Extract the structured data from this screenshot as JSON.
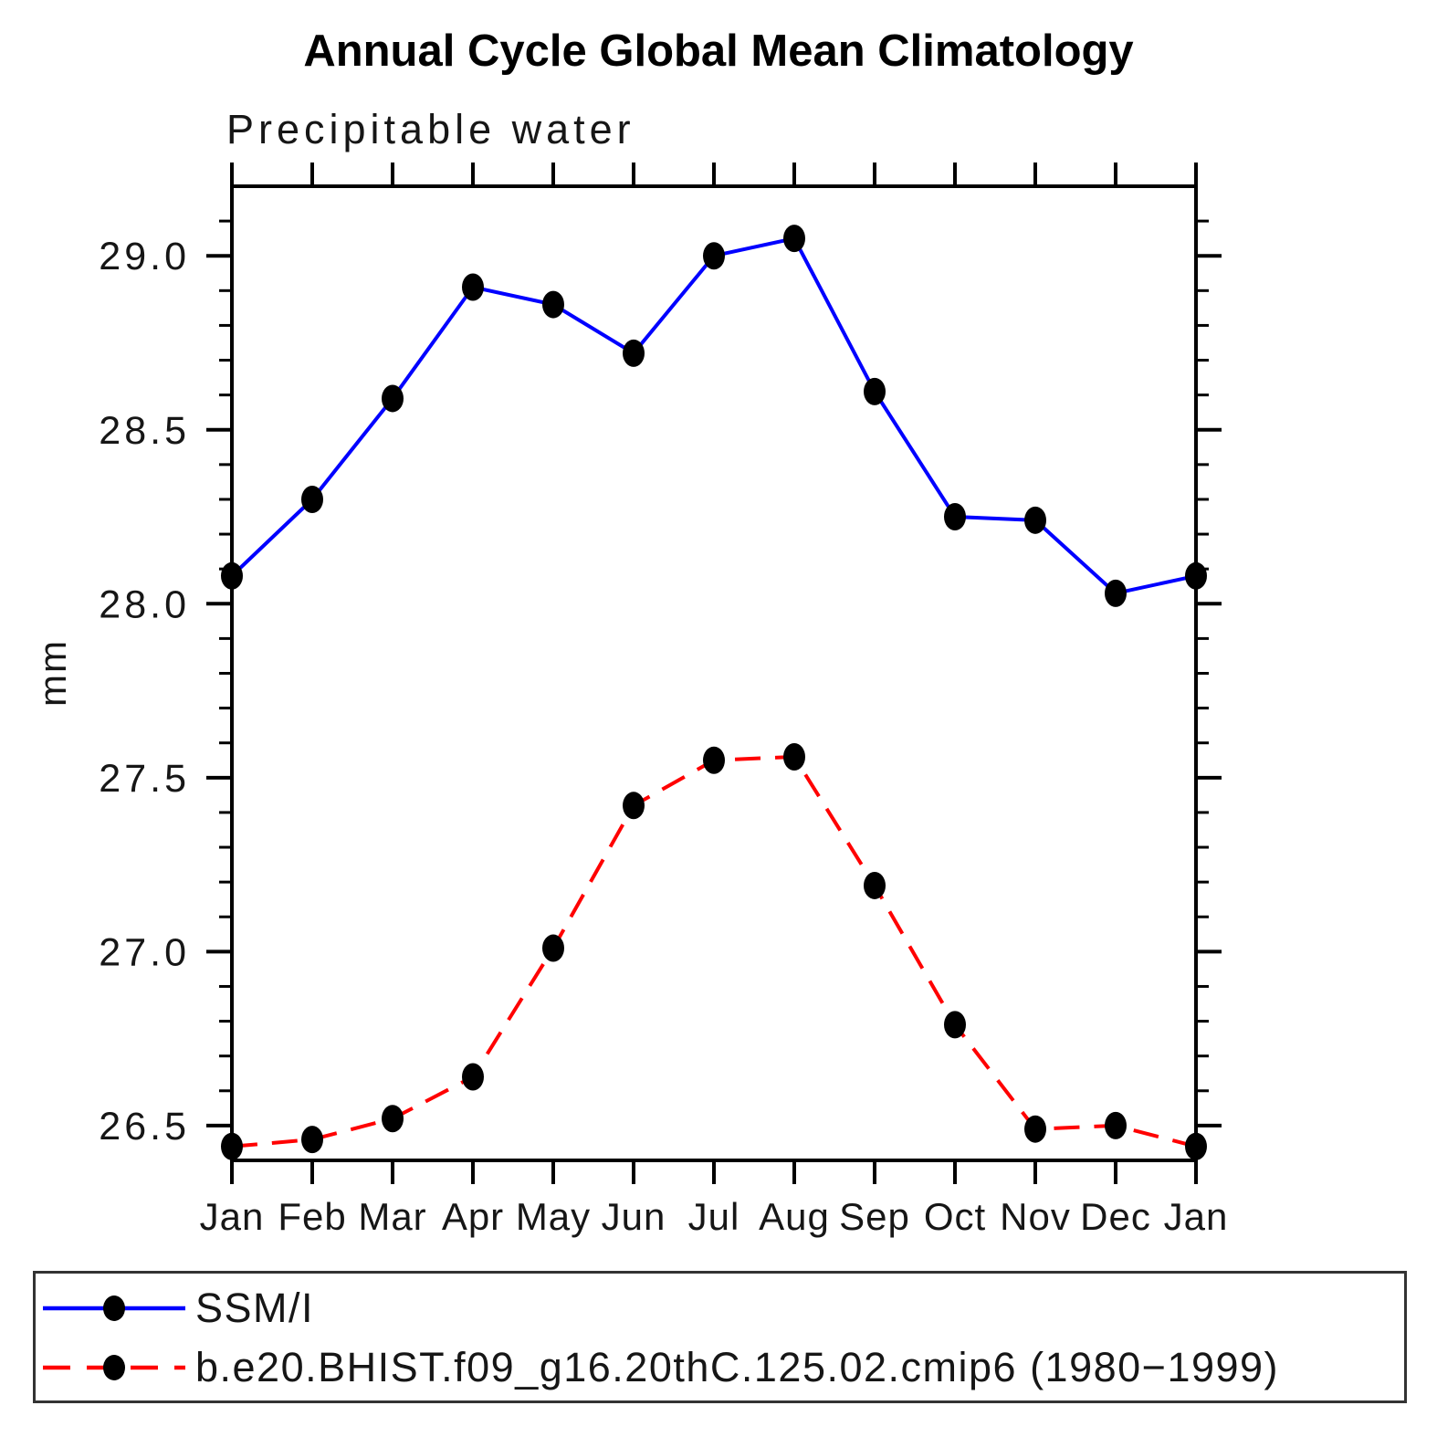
{
  "chart_data": {
    "type": "line",
    "title": "Annual Cycle Global Mean Climatology",
    "subtitle": "Precipitable water",
    "ylabel": "mm",
    "xlabel": "",
    "categories": [
      "Jan",
      "Feb",
      "Mar",
      "Apr",
      "May",
      "Jun",
      "Jul",
      "Aug",
      "Sep",
      "Oct",
      "Nov",
      "Dec",
      "Jan"
    ],
    "ylim": [
      26.4,
      29.2
    ],
    "yticks_major": [
      26.5,
      27.0,
      27.5,
      28.0,
      28.5,
      29.0
    ],
    "ytick_minor_step": 0.1,
    "grid": false,
    "legend_position": "bottom-left-box",
    "marker_color": "#000000",
    "axis_color": "#000000",
    "series": [
      {
        "name": "SSM/I",
        "color": "#0000ff",
        "line_style": "solid",
        "marker": "circle",
        "values": [
          28.08,
          28.3,
          28.59,
          28.91,
          28.86,
          28.72,
          29.0,
          29.05,
          28.61,
          28.25,
          28.24,
          28.03,
          28.08
        ]
      },
      {
        "name": "b.e20.BHIST.f09_g16.20thC.125.02.cmip6 (1980−1999)",
        "color": "#ff0000",
        "line_style": "dashed",
        "marker": "circle",
        "values": [
          26.44,
          26.46,
          26.52,
          26.64,
          27.01,
          27.42,
          27.55,
          27.56,
          27.19,
          26.79,
          26.49,
          26.5,
          26.44
        ]
      }
    ]
  }
}
